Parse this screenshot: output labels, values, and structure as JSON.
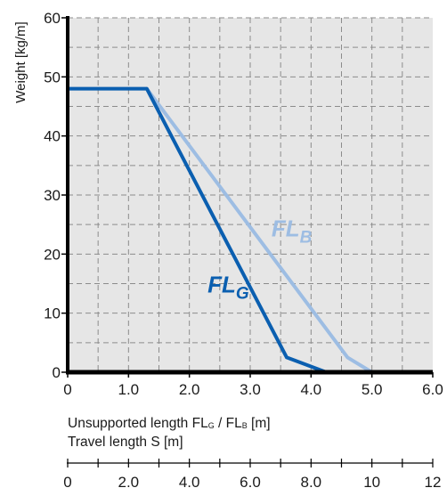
{
  "chart_data": {
    "type": "line",
    "ylabel": "Weight  [kg/m]",
    "xlabel_line1": {
      "prefix": "Unsupported length FL",
      "sub_g": "G",
      "mid": " / FL",
      "sub_b": "B",
      "suffix": " [m]"
    },
    "xlabel_line2": "Travel length S  [m]",
    "x_ticks": [
      {
        "value": 0,
        "label": "0"
      },
      {
        "value": 1,
        "label": "1.0"
      },
      {
        "value": 2,
        "label": "2.0"
      },
      {
        "value": 3,
        "label": "3.0"
      },
      {
        "value": 4,
        "label": "4.0"
      },
      {
        "value": 5,
        "label": "5.0"
      },
      {
        "value": 6,
        "label": "6.0"
      }
    ],
    "y_ticks": [
      0,
      10,
      20,
      30,
      40,
      50,
      60
    ],
    "xlim": [
      0,
      6
    ],
    "ylim": [
      0,
      60
    ],
    "grid": true,
    "travel_axis": {
      "range": [
        0,
        12
      ],
      "ticks": [
        {
          "value": 0,
          "label": "0"
        },
        {
          "value": 2,
          "label": "2.0"
        },
        {
          "value": 4,
          "label": "4.0"
        },
        {
          "value": 6,
          "label": "6.0"
        },
        {
          "value": 8,
          "label": "8.0"
        },
        {
          "value": 10,
          "label": "10"
        },
        {
          "value": 12,
          "label": "12"
        }
      ]
    },
    "series": [
      {
        "name": "FL_G",
        "label_main": "FL",
        "label_sub": "G",
        "color": "#0b5fb0",
        "points": [
          [
            0,
            48
          ],
          [
            1.3,
            48
          ],
          [
            3.6,
            2.5
          ],
          [
            4.25,
            0
          ]
        ]
      },
      {
        "name": "FL_B",
        "label_main": "FL",
        "label_sub": "B",
        "color": "#9dbde3",
        "points": [
          [
            1.3,
            48
          ],
          [
            4.6,
            2.5
          ],
          [
            5.0,
            0
          ]
        ]
      }
    ]
  }
}
